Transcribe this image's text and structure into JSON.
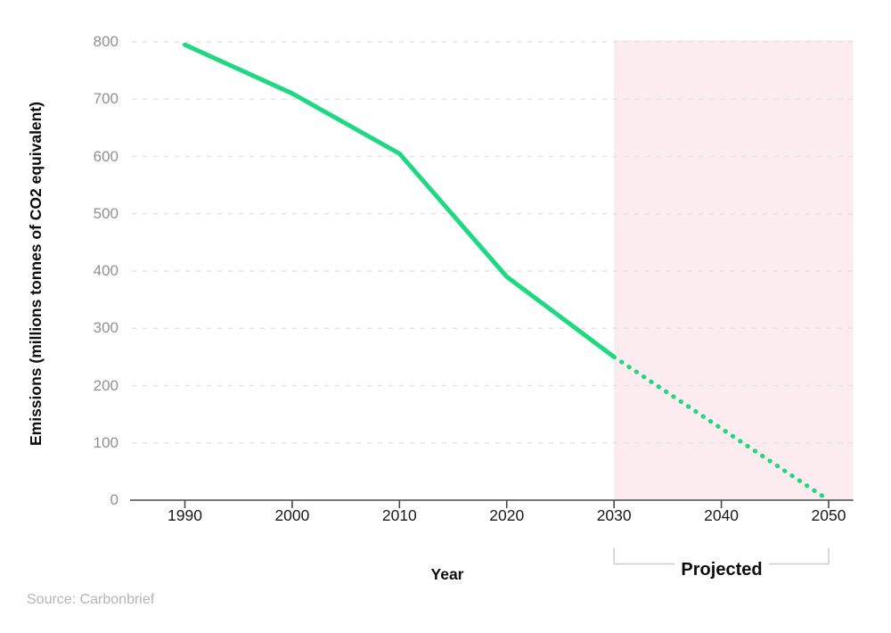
{
  "chart_data": {
    "type": "line",
    "title": "",
    "xlabel": "Year",
    "ylabel": "Emissions (millions tonnes of CO2 equivalent)",
    "source": "Source: Carbonbrief",
    "x_ticks": [
      1990,
      2000,
      2010,
      2020,
      2030,
      2040,
      2050
    ],
    "y_ticks": [
      0,
      100,
      200,
      300,
      400,
      500,
      600,
      700,
      800
    ],
    "xlim": [
      1984.9,
      2052.3
    ],
    "ylim": [
      0,
      800
    ],
    "grid": "horizontal-dashed",
    "legend": "none",
    "series": [
      {
        "name": "historical",
        "style": "solid",
        "x": [
          1990,
          2000,
          2010,
          2020,
          2030
        ],
        "y": [
          795,
          710,
          605,
          390,
          250
        ]
      },
      {
        "name": "projected",
        "style": "dotted",
        "x": [
          2030,
          2040,
          2050
        ],
        "y": [
          250,
          125,
          0
        ]
      }
    ],
    "projection_band": {
      "label": "Projected",
      "start_year": 2030
    },
    "colors": {
      "line": "#1ed882",
      "band": "#fcecef",
      "grid": "#e4e4e4",
      "axis": "#4a4a4a",
      "bracket": "#cccccc",
      "y_tick_text": "#909090",
      "x_tick_text": "#1a1a1a",
      "source_text": "#b5b5b5"
    }
  }
}
